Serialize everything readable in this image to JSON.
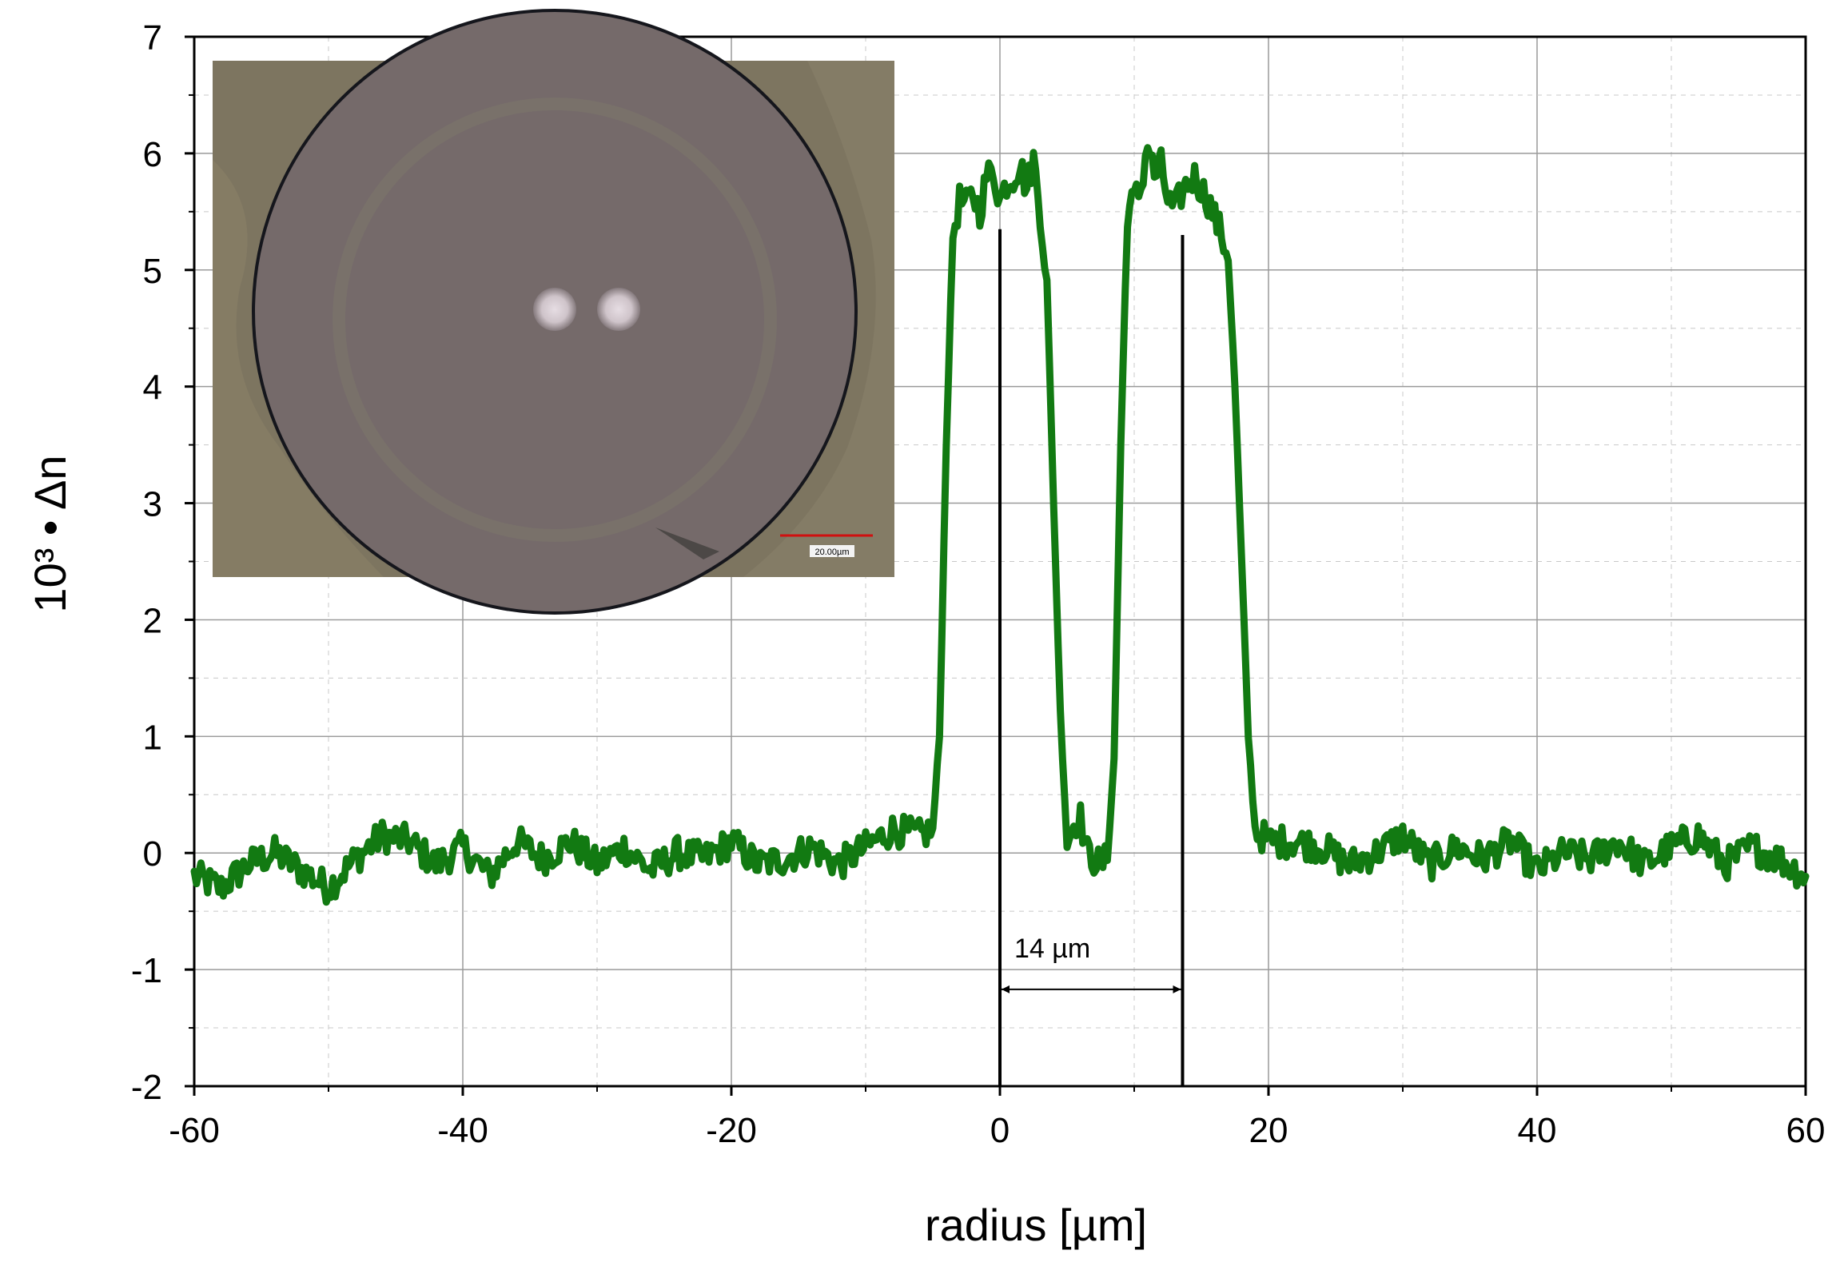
{
  "chart_data": {
    "type": "line",
    "title": "",
    "xlabel": "radius [µm]",
    "ylabel": "10³ • Δn",
    "xlim": [
      -60,
      60
    ],
    "ylim": [
      -2,
      7
    ],
    "x_ticks": [
      -60,
      -40,
      -20,
      0,
      20,
      40,
      60
    ],
    "y_ticks": [
      -2,
      -1,
      0,
      1,
      2,
      3,
      4,
      5,
      6,
      7
    ],
    "grid": true,
    "legend": "none",
    "series": [
      {
        "color": "#127a12",
        "x": [
          -60,
          -58,
          -56,
          -54,
          -52,
          -50,
          -48,
          -46,
          -44,
          -42,
          -40,
          -38,
          -36,
          -34,
          -32,
          -30,
          -28,
          -26,
          -24,
          -22,
          -20,
          -18,
          -16,
          -14,
          -12,
          -10,
          -8,
          -6,
          -5,
          -4.5,
          -4,
          -3.5,
          -3,
          -2.5,
          -2,
          -1.5,
          -1,
          -0.5,
          0,
          0.5,
          1,
          1.5,
          2,
          2.5,
          3,
          3.5,
          4,
          4.5,
          5,
          5.5,
          6,
          6.5,
          7,
          7.5,
          8,
          8.5,
          9,
          9.5,
          10,
          10.5,
          11,
          11.5,
          12,
          12.5,
          13,
          13.5,
          14,
          14.5,
          15,
          15.5,
          16,
          16.5,
          17,
          17.5,
          18,
          18.5,
          19,
          20,
          22,
          24,
          26,
          28,
          30,
          32,
          34,
          36,
          38,
          40,
          42,
          44,
          46,
          48,
          50,
          52,
          54,
          56,
          58,
          60
        ],
        "y": [
          -0.2,
          -0.3,
          -0.1,
          0,
          -0.15,
          -0.3,
          -0.05,
          0.15,
          0.1,
          -0.1,
          0.05,
          -0.2,
          0.1,
          -0.05,
          0.1,
          -0.1,
          0.05,
          -0.15,
          0,
          -0.05,
          0.1,
          -0.1,
          -0.05,
          0.05,
          -0.1,
          0.05,
          0.2,
          0.15,
          0.2,
          1.0,
          3.5,
          5.3,
          5.6,
          5.55,
          5.65,
          5.5,
          5.8,
          5.85,
          5.6,
          5.75,
          5.8,
          5.9,
          5.7,
          5.95,
          5.5,
          4.9,
          3.0,
          1.2,
          0.1,
          0.25,
          0.3,
          0.0,
          -0.05,
          -0.1,
          -0.05,
          0.8,
          3.5,
          5.5,
          5.6,
          5.7,
          6.1,
          5.8,
          5.9,
          5.6,
          5.5,
          5.65,
          5.75,
          5.8,
          5.7,
          5.6,
          5.45,
          5.3,
          5.1,
          4.0,
          2.5,
          1.0,
          0.2,
          0.1,
          0.1,
          0.05,
          -0.1,
          0,
          0.15,
          -0.1,
          0.05,
          -0.05,
          0.1,
          -0.15,
          0,
          -0.05,
          0.1,
          -0.1,
          0.05,
          0.15,
          -0.1,
          0.05,
          -0.05,
          -0.2
        ]
      }
    ],
    "annotations": [
      {
        "text": "14 µm",
        "x_from": 0,
        "x_to": 13.6,
        "y": -1.17
      }
    ],
    "markers": [
      {
        "x": 0,
        "y_top": 5.35,
        "y_bottom": -2
      },
      {
        "x": 13.6,
        "y_top": 5.3,
        "y_bottom": -2
      }
    ],
    "inset": {
      "kind": "micrograph",
      "scale_bar_label": "20.00µm"
    }
  }
}
